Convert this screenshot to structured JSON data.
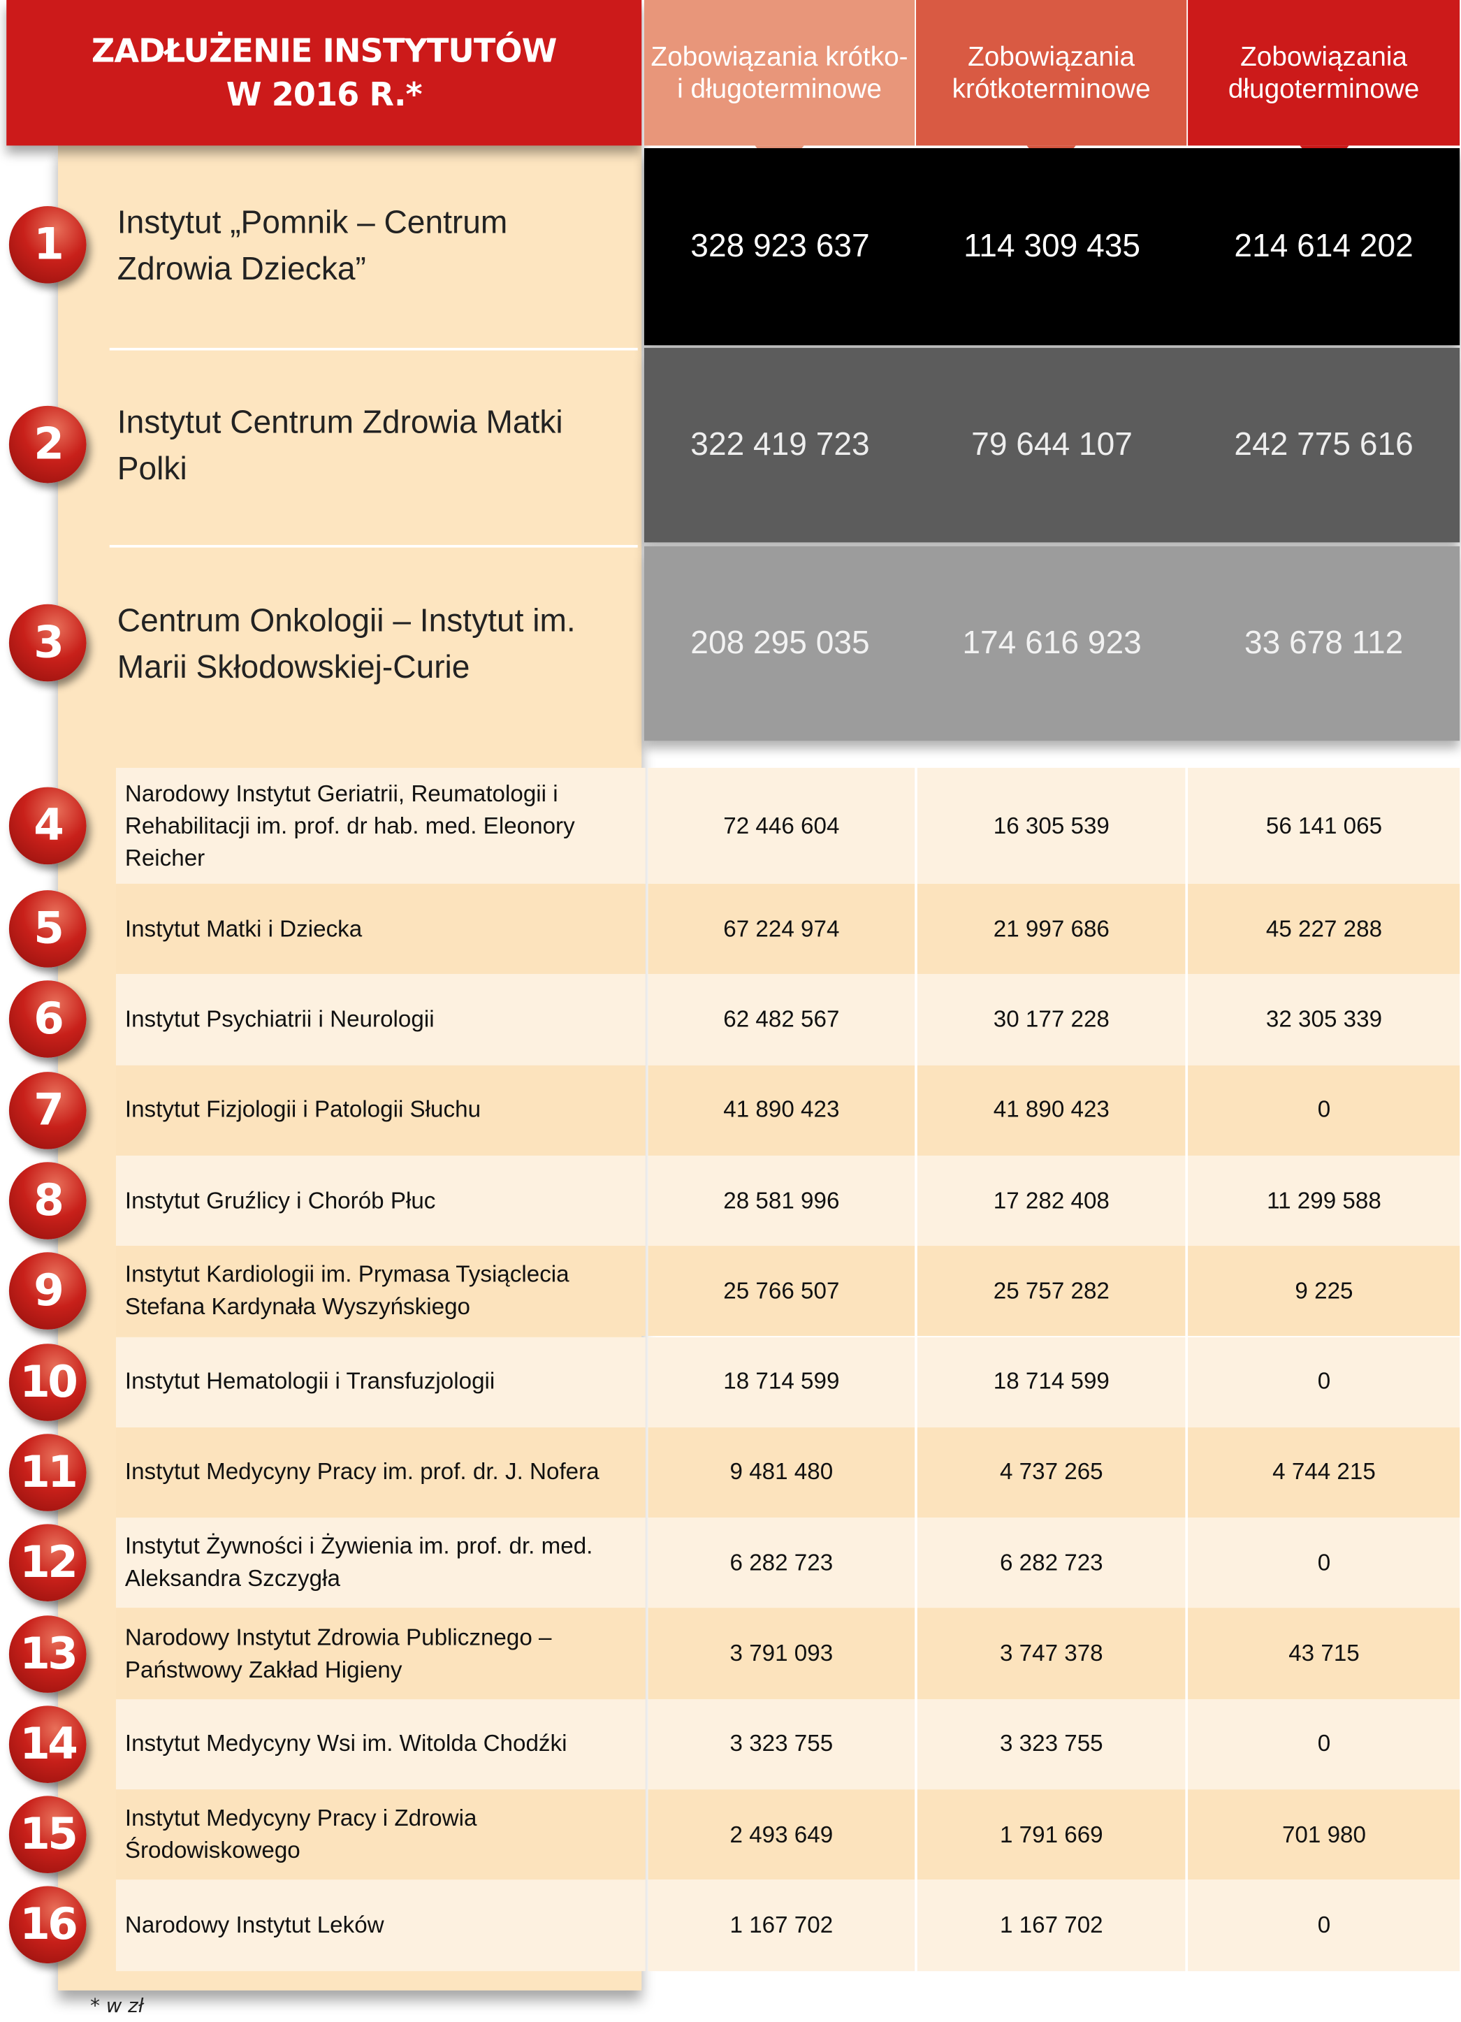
{
  "title": {
    "line1": "ZADŁUŻENIE INSTYTUTÓW",
    "line2": "W 2016 R.*"
  },
  "columns": [
    {
      "label": "Zobowiązania krótko- i długoterminowe",
      "color": "#e8967a"
    },
    {
      "label": "Zobowiązania krótkoterminowe",
      "color": "#d95a43"
    },
    {
      "label": "Zobowiązania długoterminowe",
      "color": "#cc1a1a"
    }
  ],
  "footnote": "* w zł",
  "chart_data": {
    "type": "table",
    "title": "ZADŁUŻENIE INSTYTUTÓW W 2016 R.*",
    "columns": [
      "Zobowiązania krótko- i długoterminowe",
      "Zobowiązania krótkoterminowe",
      "Zobowiązania długoterminowe"
    ],
    "rows": [
      {
        "rank": "1",
        "name": "Instytut „Pomnik – Centrum Zdrowia Dziecka”",
        "values": [
          "328 923 637",
          "114 309 435",
          "214 614 202"
        ]
      },
      {
        "rank": "2",
        "name": "Instytut Centrum Zdrowia Matki Polki",
        "values": [
          "322 419 723",
          "79 644 107",
          "242 775 616"
        ]
      },
      {
        "rank": "3",
        "name": "Centrum Onkologii – Instytut im. Marii Skłodowskiej-Curie",
        "values": [
          "208 295 035",
          "174 616 923",
          "33 678 112"
        ]
      },
      {
        "rank": "4",
        "name": "Narodowy Instytut Geriatrii, Reumatologii i Rehabilitacji im. prof. dr hab. med. Eleonory Reicher",
        "values": [
          "72 446 604",
          "16 305 539",
          "56 141 065"
        ]
      },
      {
        "rank": "5",
        "name": "Instytut Matki i Dziecka",
        "values": [
          "67 224 974",
          "21 997 686",
          "45 227 288"
        ]
      },
      {
        "rank": "6",
        "name": "Instytut Psychiatrii i Neurologii",
        "values": [
          "62 482 567",
          "30 177 228",
          "32 305 339"
        ]
      },
      {
        "rank": "7",
        "name": "Instytut Fizjologii i Patologii Słuchu",
        "values": [
          "41 890 423",
          "41 890 423",
          "0"
        ]
      },
      {
        "rank": "8",
        "name": "Instytut Gruźlicy i Chorób Płuc",
        "values": [
          "28 581 996",
          "17 282 408",
          "11 299 588"
        ]
      },
      {
        "rank": "9",
        "name": "Instytut Kardiologii im. Prymasa Tysiąclecia Stefana Kardynała Wyszyńskiego",
        "values": [
          "25 766 507",
          "25 757 282",
          "9 225"
        ]
      },
      {
        "rank": "10",
        "name": "Instytut Hematologii i Transfuzjologii",
        "values": [
          "18 714 599",
          "18 714 599",
          "0"
        ]
      },
      {
        "rank": "11",
        "name": "Instytut Medycyny Pracy im. prof. dr. J. Nofera",
        "values": [
          "9 481 480",
          "4 737 265",
          "4 744 215"
        ]
      },
      {
        "rank": "12",
        "name": "Instytut Żywności i Żywienia im. prof. dr. med. Aleksandra Szczygła",
        "values": [
          "6 282 723",
          "6 282 723",
          "0"
        ]
      },
      {
        "rank": "13",
        "name": "Narodowy Instytut Zdrowia Publicznego – Państwowy Zakład Higieny",
        "values": [
          "3 791 093",
          "3 747 378",
          "43 715"
        ]
      },
      {
        "rank": "14",
        "name": "Instytut Medycyny Wsi im. Witolda Chodźki",
        "values": [
          "3 323 755",
          "3 323 755",
          "0"
        ]
      },
      {
        "rank": "15",
        "name": "Instytut Medycyny Pracy i Zdrowia Środowiskowego",
        "values": [
          "2 493 649",
          "1 791 669",
          "701 980"
        ]
      },
      {
        "rank": "16",
        "name": "Narodowy Instytut Leków",
        "values": [
          "1 167 702",
          "1 167 702",
          "0"
        ]
      }
    ]
  }
}
